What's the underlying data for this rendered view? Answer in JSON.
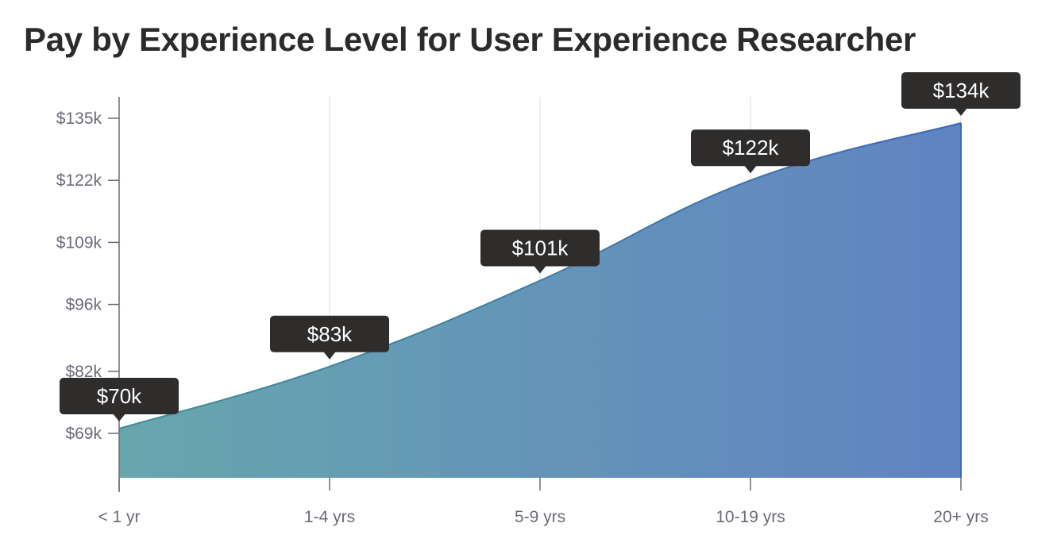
{
  "chart_data": {
    "type": "area",
    "title": "Pay by Experience Level for User Experience Researcher",
    "xlabel": "",
    "ylabel": "",
    "categories": [
      "< 1 yr",
      "1-4 yrs",
      "5-9 yrs",
      "10-19 yrs",
      "20+ yrs"
    ],
    "values": [
      70,
      83,
      101,
      122,
      134
    ],
    "data_labels": [
      "$70k",
      "$83k",
      "$101k",
      "$122k",
      "$134k"
    ],
    "y_ticks": [
      69,
      82,
      96,
      109,
      122,
      135
    ],
    "y_tick_labels": [
      "$69k",
      "$82k",
      "$96k",
      "$109k",
      "$122k",
      "$135k"
    ],
    "y_unit": "thousands USD",
    "grid": "vertical",
    "legend": "none",
    "colors": {
      "fill_start": "#68a6ad",
      "fill_end": "#6083c2",
      "line_start": "#3f8f96",
      "line_end": "#3d68b8",
      "tooltip": "#2f2c2c"
    }
  }
}
